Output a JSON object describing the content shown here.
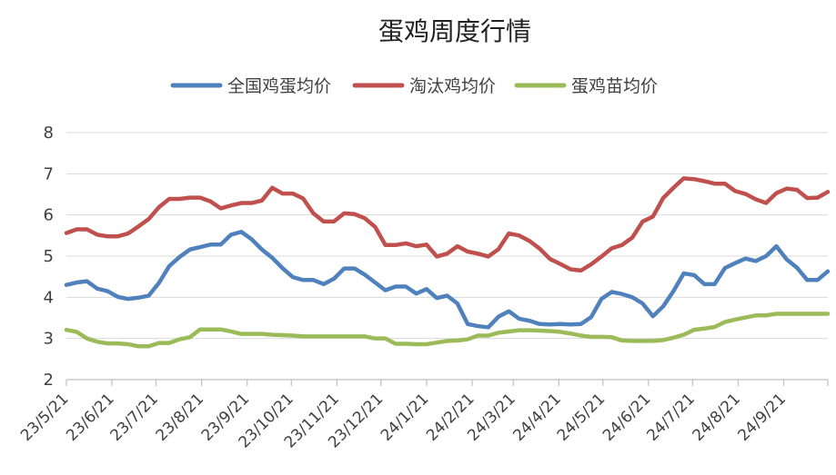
{
  "chart_data": {
    "type": "line",
    "title": "蛋鸡周度行情",
    "xlabel": "",
    "ylabel": "",
    "ylim": [
      2,
      8
    ],
    "yticks": [
      2,
      3,
      4,
      5,
      6,
      7,
      8
    ],
    "grid": "horizontal",
    "legend_position": "top-center",
    "x_start": "23/5/21",
    "x_interval": "weekly",
    "xtick_labels": [
      "23/5/21",
      "23/6/21",
      "23/7/21",
      "23/8/21",
      "23/9/21",
      "23/10/21",
      "23/11/21",
      "23/12/21",
      "24/1/21",
      "24/2/21",
      "24/3/21",
      "24/4/21",
      "24/5/21",
      "24/6/21",
      "24/7/21",
      "24/8/21",
      "24/9/21"
    ],
    "xtick_week_index": [
      0,
      4.43,
      8.71,
      13.14,
      17.57,
      21.86,
      26.29,
      30.57,
      35.0,
      39.43,
      43.43,
      47.86,
      52.14,
      56.57,
      60.86,
      65.29,
      69.71
    ],
    "series": [
      {
        "name": "全国鸡蛋均价",
        "color": "#4f81bd",
        "values": [
          4.3,
          4.36,
          4.39,
          4.21,
          4.15,
          4.01,
          3.96,
          3.99,
          4.04,
          4.35,
          4.76,
          4.98,
          5.16,
          5.22,
          5.28,
          5.28,
          5.52,
          5.59,
          5.41,
          5.16,
          4.96,
          4.71,
          4.49,
          4.42,
          4.42,
          4.32,
          4.45,
          4.7,
          4.7,
          4.55,
          4.36,
          4.17,
          4.26,
          4.26,
          4.09,
          4.2,
          3.98,
          4.04,
          3.85,
          3.35,
          3.3,
          3.27,
          3.53,
          3.66,
          3.48,
          3.43,
          3.35,
          3.34,
          3.35,
          3.34,
          3.35,
          3.52,
          3.96,
          4.13,
          4.08,
          4.0,
          3.85,
          3.54,
          3.78,
          4.15,
          4.58,
          4.54,
          4.32,
          4.32,
          4.71,
          4.83,
          4.94,
          4.88,
          5.0,
          5.24,
          4.92,
          4.72,
          4.42,
          4.42,
          4.63
        ]
      },
      {
        "name": "淘汰鸡均价",
        "color": "#c0504d",
        "values": [
          5.56,
          5.65,
          5.65,
          5.52,
          5.48,
          5.48,
          5.55,
          5.72,
          5.9,
          6.19,
          6.39,
          6.39,
          6.42,
          6.42,
          6.33,
          6.16,
          6.23,
          6.29,
          6.29,
          6.35,
          6.66,
          6.52,
          6.52,
          6.4,
          6.04,
          5.84,
          5.84,
          6.04,
          6.02,
          5.92,
          5.71,
          5.27,
          5.27,
          5.31,
          5.24,
          5.28,
          4.99,
          5.06,
          5.24,
          5.11,
          5.06,
          4.99,
          5.17,
          5.55,
          5.5,
          5.37,
          5.18,
          4.93,
          4.81,
          4.68,
          4.65,
          4.8,
          4.99,
          5.19,
          5.27,
          5.45,
          5.84,
          5.96,
          6.41,
          6.66,
          6.89,
          6.87,
          6.82,
          6.76,
          6.76,
          6.58,
          6.51,
          6.38,
          6.29,
          6.53,
          6.64,
          6.61,
          6.41,
          6.42,
          6.56
        ]
      },
      {
        "name": "蛋鸡苗均价",
        "color": "#9bbb59",
        "values": [
          3.21,
          3.16,
          3.0,
          2.92,
          2.88,
          2.88,
          2.86,
          2.81,
          2.81,
          2.89,
          2.89,
          2.98,
          3.03,
          3.22,
          3.22,
          3.22,
          3.17,
          3.11,
          3.11,
          3.11,
          3.09,
          3.08,
          3.07,
          3.05,
          3.05,
          3.05,
          3.05,
          3.05,
          3.05,
          3.05,
          3.0,
          3.0,
          2.87,
          2.87,
          2.86,
          2.86,
          2.9,
          2.94,
          2.95,
          2.98,
          3.07,
          3.07,
          3.14,
          3.17,
          3.2,
          3.2,
          3.19,
          3.18,
          3.16,
          3.12,
          3.07,
          3.04,
          3.04,
          3.03,
          2.95,
          2.94,
          2.94,
          2.94,
          2.96,
          3.02,
          3.09,
          3.21,
          3.24,
          3.28,
          3.4,
          3.46,
          3.51,
          3.56,
          3.56,
          3.6,
          3.6,
          3.6,
          3.6,
          3.6,
          3.6
        ]
      }
    ]
  }
}
